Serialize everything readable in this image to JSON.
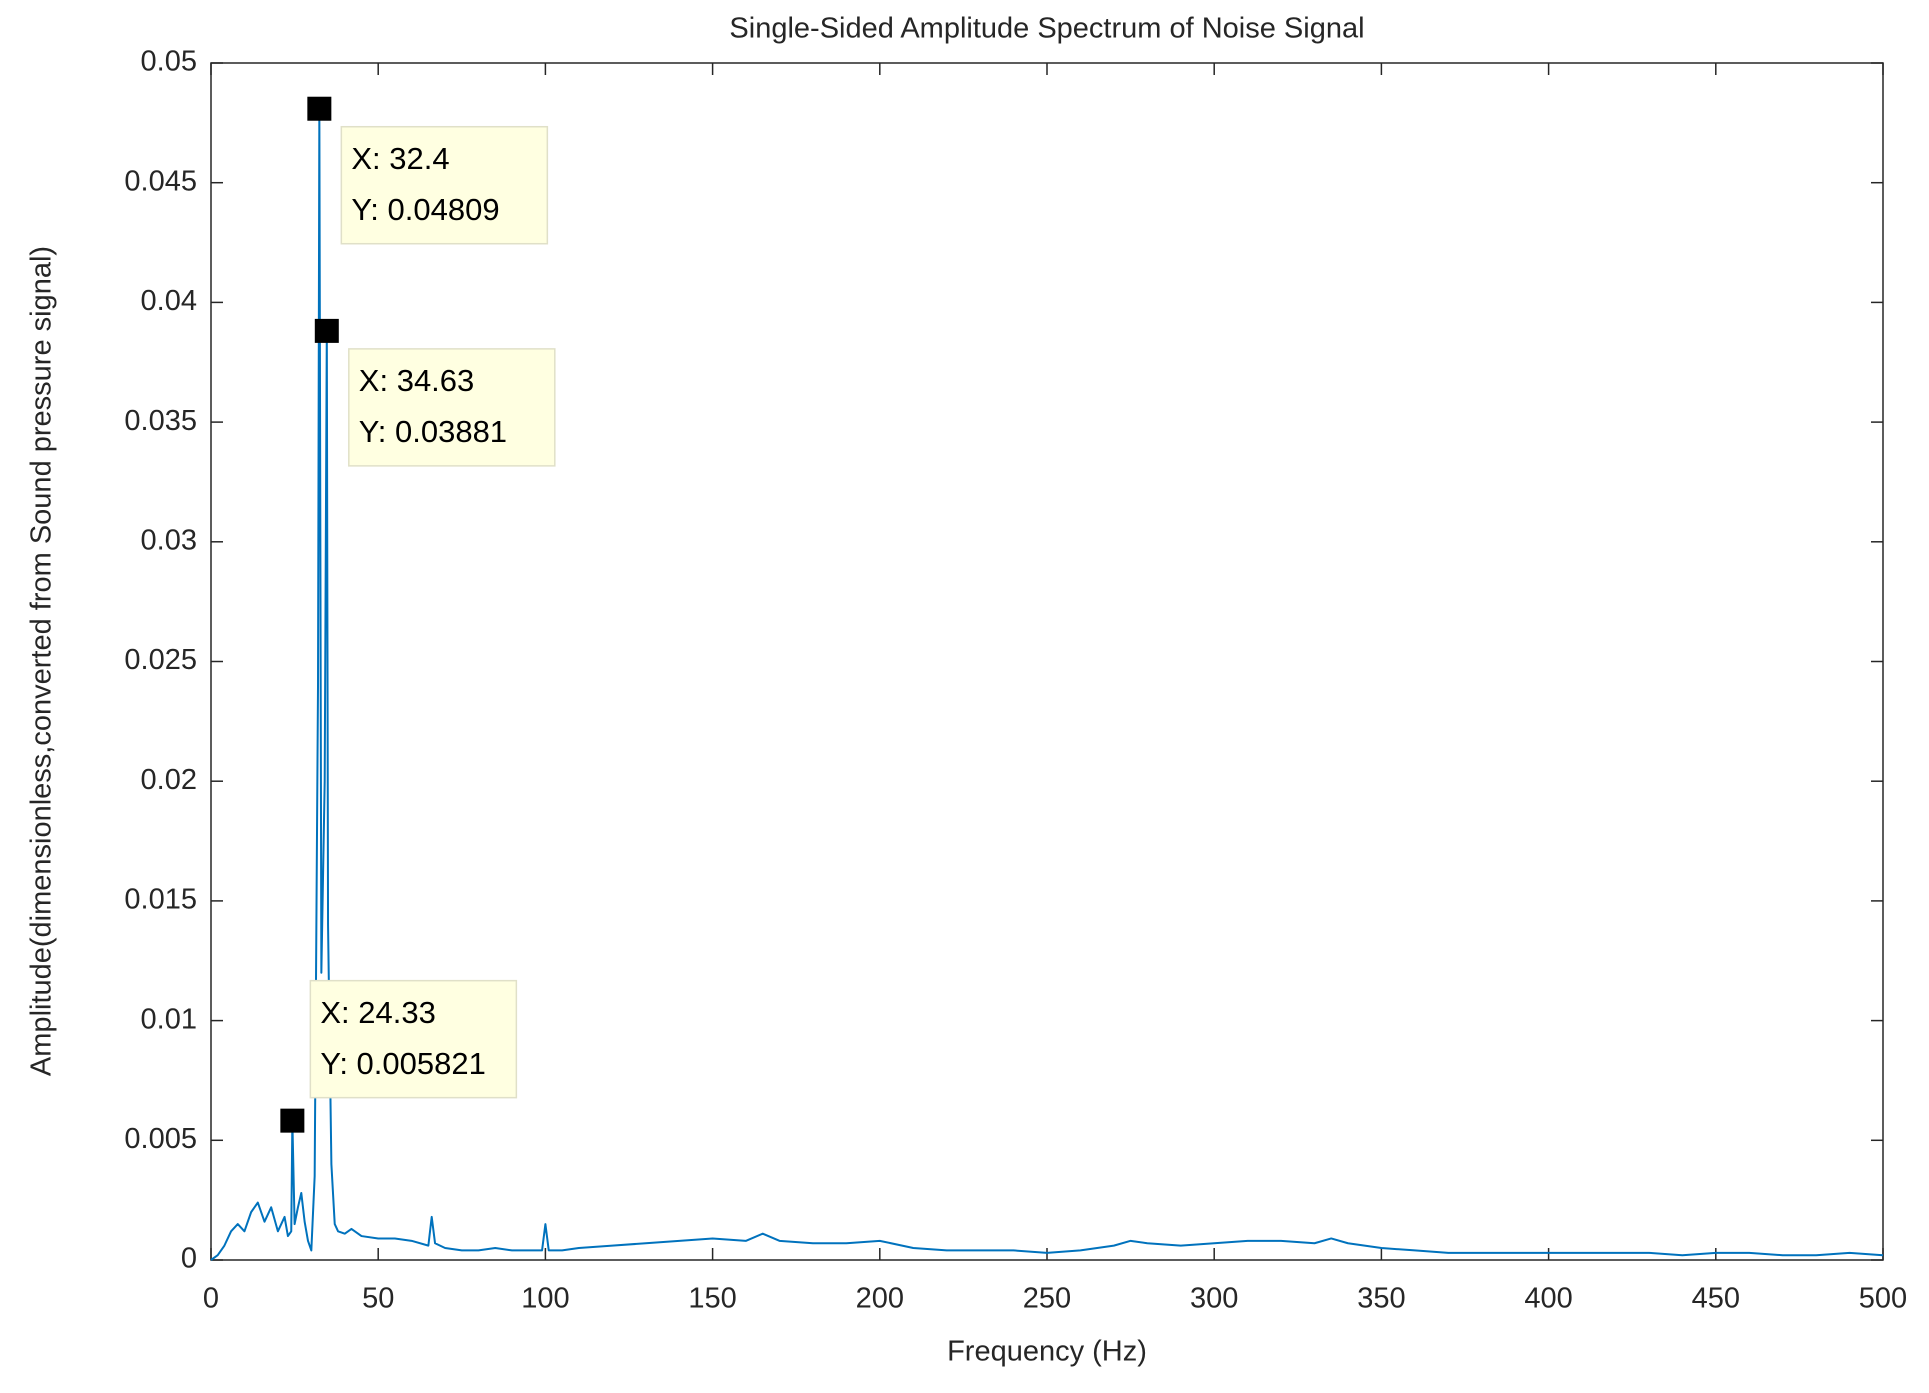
{
  "chart_data": {
    "type": "line",
    "title": "Single-Sided Amplitude Spectrum of Noise Signal",
    "x_label": "Frequency (Hz)",
    "y_label": "Amplitude(dimensionless,converted from Sound pressure signal)",
    "xlim": [
      0,
      500
    ],
    "xticks": [
      0,
      50,
      100,
      150,
      200,
      250,
      300,
      350,
      400,
      450,
      500
    ],
    "ylim": [
      0,
      0.05
    ],
    "yticks": [
      0,
      0.005,
      0.01,
      0.015,
      0.02,
      0.025,
      0.03,
      0.035,
      0.04,
      0.045,
      0.05
    ],
    "series": [
      {
        "color": "#0072bd",
        "x": [
          0,
          2,
          4,
          6,
          8,
          10,
          12,
          14,
          16,
          18,
          20,
          22,
          23,
          24,
          24.33,
          25,
          26,
          27,
          28,
          29,
          30,
          31,
          32,
          32.4,
          33,
          34,
          34.63,
          35,
          36,
          37,
          38,
          40,
          42,
          45,
          50,
          55,
          60,
          65,
          66,
          67,
          70,
          75,
          80,
          85,
          90,
          95,
          99,
          100,
          101,
          105,
          110,
          120,
          130,
          140,
          150,
          160,
          165,
          170,
          180,
          190,
          200,
          210,
          220,
          230,
          240,
          250,
          260,
          270,
          275,
          280,
          290,
          300,
          310,
          320,
          330,
          335,
          340,
          350,
          360,
          370,
          380,
          390,
          400,
          410,
          420,
          430,
          440,
          450,
          460,
          470,
          480,
          490,
          500
        ],
        "values": [
          0,
          0.0002,
          0.0006,
          0.0012,
          0.0015,
          0.0012,
          0.002,
          0.0024,
          0.0016,
          0.0022,
          0.0012,
          0.0018,
          0.001,
          0.0012,
          0.005821,
          0.0015,
          0.0022,
          0.0028,
          0.0016,
          0.0008,
          0.0004,
          0.0035,
          0.024,
          0.04809,
          0.012,
          0.02,
          0.03881,
          0.014,
          0.004,
          0.0015,
          0.0012,
          0.0011,
          0.0013,
          0.001,
          0.0009,
          0.0009,
          0.0008,
          0.0006,
          0.0018,
          0.0007,
          0.0005,
          0.0004,
          0.0004,
          0.0005,
          0.0004,
          0.0004,
          0.0004,
          0.0015,
          0.0004,
          0.0004,
          0.0005,
          0.0006,
          0.0007,
          0.0008,
          0.0009,
          0.0008,
          0.0011,
          0.0008,
          0.0007,
          0.0007,
          0.0008,
          0.0005,
          0.0004,
          0.0004,
          0.0004,
          0.0003,
          0.0004,
          0.0006,
          0.0008,
          0.0007,
          0.0006,
          0.0007,
          0.0008,
          0.0008,
          0.0007,
          0.0009,
          0.0007,
          0.0005,
          0.0004,
          0.0003,
          0.0003,
          0.0003,
          0.0003,
          0.0003,
          0.0003,
          0.0003,
          0.0002,
          0.0003,
          0.0003,
          0.0002,
          0.0002,
          0.0003,
          0.0002
        ]
      }
    ],
    "data_tips": [
      {
        "x": 32.4,
        "y": 0.04809,
        "x_label": "X: 32.4",
        "y_label": "Y: 0.04809"
      },
      {
        "x": 34.63,
        "y": 0.03881,
        "x_label": "X: 34.63",
        "y_label": "Y: 0.03881"
      },
      {
        "x": 24.33,
        "y": 0.005821,
        "x_label": "X: 24.33",
        "y_label": "Y: 0.005821"
      }
    ]
  }
}
